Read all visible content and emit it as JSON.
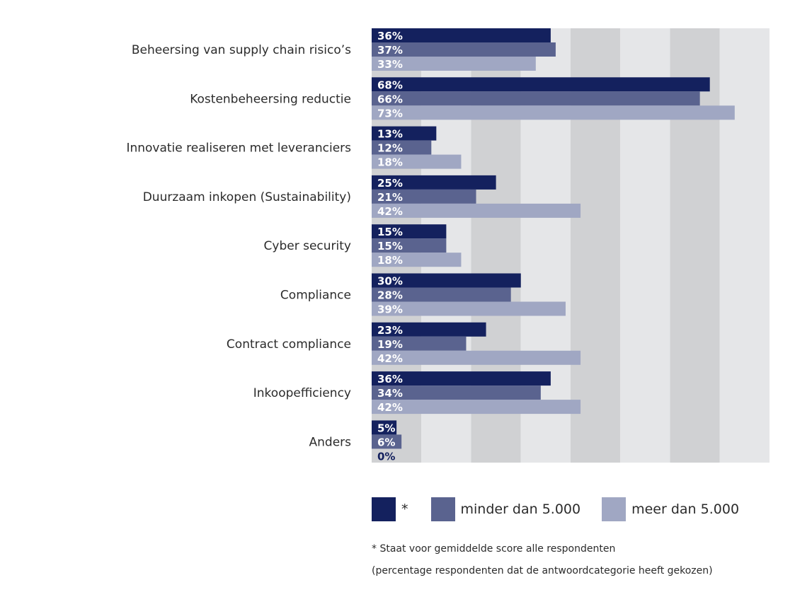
{
  "chart_data": {
    "type": "bar",
    "orientation": "horizontal",
    "title": "",
    "xlabel": "",
    "ylabel": "",
    "xlim": [
      0,
      80
    ],
    "grid": "alternating vertical bands every 10%",
    "value_suffix": "%",
    "categories": [
      "Beheersing van supply chain risico’s",
      "Kostenbeheersing reductie",
      "Innovatie realiseren met leveranciers",
      "Duurzaam inkopen (Sustainability)",
      "Cyber security",
      "Compliance",
      "Contract compliance",
      "Inkoopefficiency",
      "Anders"
    ],
    "series": [
      {
        "name": "*",
        "color": "#14215e",
        "values": [
          36,
          68,
          13,
          25,
          15,
          30,
          23,
          36,
          5
        ]
      },
      {
        "name": "minder dan 5.000",
        "color": "#5a638f",
        "values": [
          37,
          66,
          12,
          21,
          15,
          28,
          19,
          34,
          6
        ]
      },
      {
        "name": "meer dan 5.000",
        "color": "#a0a7c3",
        "values": [
          33,
          73,
          18,
          42,
          18,
          39,
          42,
          42,
          0
        ]
      }
    ],
    "legend_position": "bottom",
    "band_colors": [
      "#d0d1d3",
      "#e5e6e8"
    ],
    "label_color_on_bar": "#ffffff",
    "label_color_zero": "#14215e"
  },
  "legend": {
    "items": [
      {
        "label": "*",
        "color": "#14215e"
      },
      {
        "label": "minder dan 5.000",
        "color": "#5a638f"
      },
      {
        "label": "meer dan 5.000",
        "color": "#a0a7c3"
      }
    ]
  },
  "notes": {
    "line1": "* Staat voor gemiddelde score alle respondenten",
    "line2": "(percentage respondenten dat de antwoordcategorie heeft gekozen)"
  }
}
